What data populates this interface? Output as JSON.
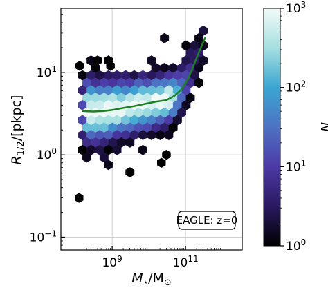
{
  "chart_data": {
    "type": "heatmap",
    "subtype": "hexbin",
    "xlabel": "M⋆/M⊙",
    "ylabel": "R1/2/[pkpc]",
    "xscale": "log",
    "yscale": "log",
    "xlim": [
      40000000.0,
      3500000000000.0
    ],
    "ylim": [
      0.07,
      60
    ],
    "x_ticks": [
      {
        "value": 1000000000.0,
        "label": "10",
        "exp": "9"
      },
      {
        "value": 100000000000.0,
        "label": "10",
        "exp": "11"
      }
    ],
    "y_ticks": [
      {
        "value": 0.1,
        "label": "10",
        "exp": "−1"
      },
      {
        "value": 1,
        "label": "10",
        "exp": "0"
      },
      {
        "value": 10,
        "label": "10",
        "exp": "1"
      }
    ],
    "grid": true,
    "annotation": "EAGLE: z=0",
    "colorbar": {
      "label": "N",
      "scale": "log",
      "range": [
        1,
        1000
      ],
      "ticks": [
        {
          "value": 1,
          "label": "10",
          "exp": "0"
        },
        {
          "value": 10,
          "label": "10",
          "exp": "1"
        },
        {
          "value": 100,
          "label": "10",
          "exp": "2"
        },
        {
          "value": 1000,
          "label": "10",
          "exp": "3"
        }
      ],
      "colors": [
        "#000000",
        "#2a1960",
        "#4c39a5",
        "#4d72c4",
        "#3aa6d1",
        "#a6dfe0",
        "#f2faf8"
      ]
    },
    "median_line": {
      "color": "#1d7f24",
      "x": [
        150000000.0,
        300000000.0,
        600000000.0,
        1000000000.0,
        2000000000.0,
        4000000000.0,
        8000000000.0,
        15000000000.0,
        30000000000.0,
        50000000000.0,
        80000000000.0,
        120000000000.0,
        200000000000.0,
        350000000000.0
      ],
      "y": [
        3.4,
        3.35,
        3.4,
        3.5,
        3.7,
        3.9,
        4.15,
        4.4,
        4.6,
        5.2,
        6.3,
        8.5,
        15,
        27
      ]
    }
  }
}
